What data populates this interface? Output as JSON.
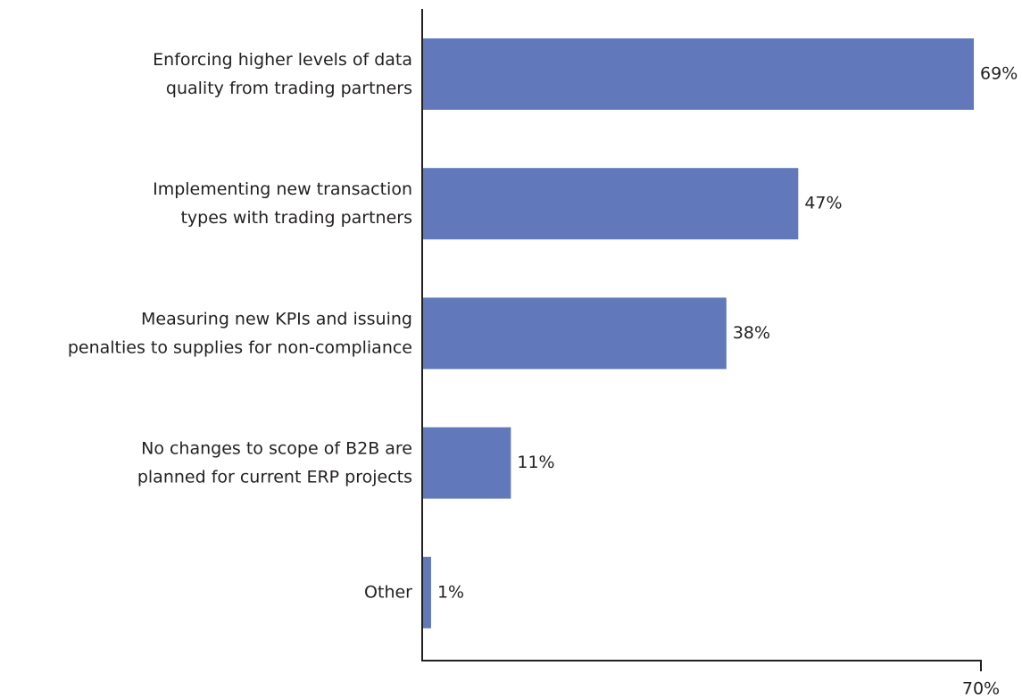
{
  "chart_data": {
    "type": "bar",
    "orientation": "horizontal",
    "categories": [
      "Enforcing higher levels of data\nquality from trading partners",
      "Implementing new transaction\ntypes with trading partners",
      "Measuring new KPIs and issuing\npenalties to supplies for non-compliance",
      "No changes to scope of B2B are\nplanned for current ERP projects",
      "Other"
    ],
    "values": [
      69,
      47,
      38,
      11,
      1
    ],
    "value_labels": [
      "69%",
      "47%",
      "38%",
      "11%",
      "1%"
    ],
    "color": "#6179bb",
    "xlim": [
      0,
      70
    ],
    "xticks": [
      {
        "value": 70,
        "label": "70%"
      }
    ],
    "grid": false
  }
}
